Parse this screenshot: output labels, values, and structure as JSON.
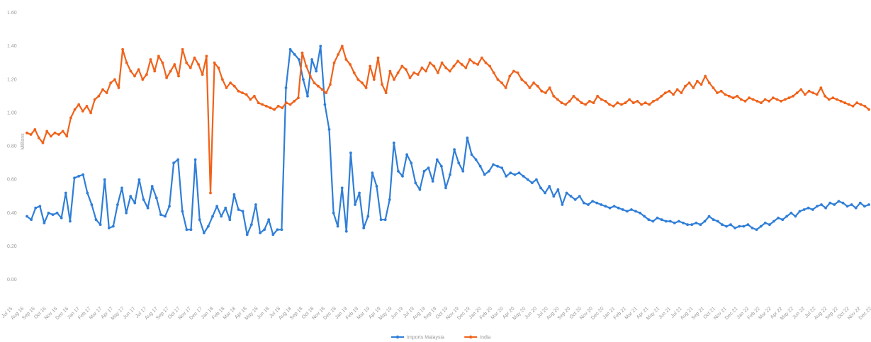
{
  "chart_data": {
    "type": "line",
    "title": "",
    "xlabel": "",
    "ylabel": "Millions",
    "legend_position": "bottom",
    "grid": false,
    "x_tick_labels": [
      "Jul 15",
      "Aug 16",
      "Sep 16",
      "Oct 16",
      "Nov 16",
      "Dec 16",
      "Jan 17",
      "Feb 17",
      "Mar 17",
      "Apr 17",
      "May 17",
      "Jun 17",
      "Jul 17",
      "Aug 17",
      "Sep 17",
      "Oct 17",
      "Nov 17",
      "Dec 17",
      "Jan 18",
      "Feb 18",
      "Mar 18",
      "Apr 18",
      "May 18",
      "Jun 18",
      "Jul 18",
      "Aug 18",
      "Sep 18",
      "Oct 18",
      "Nov 18",
      "Dec 18",
      "Jan 19",
      "Feb 19",
      "Mar 19",
      "Apr 19",
      "May 19",
      "Jun 19",
      "Jul 19",
      "Aug 19",
      "Sep 19",
      "Oct 19",
      "Nov 19",
      "Dec 19",
      "Jan 20",
      "Feb 20",
      "Mar 20",
      "Apr 20",
      "May 20",
      "Jun 20",
      "Jul 20",
      "Aug 20",
      "Sep 20",
      "Oct 20",
      "Nov 20",
      "Dec 20",
      "Jan 21",
      "Feb 21",
      "Mar 21",
      "Apr 21",
      "May 21",
      "Jun 21",
      "Jul 21",
      "Aug 21",
      "Sep 21",
      "Oct 21",
      "Nov 21",
      "Dec 21",
      "Jan 22",
      "Feb 22",
      "Mar 22",
      "Apr 22",
      "May 22",
      "Jun 22",
      "Jul 22",
      "Aug 22",
      "Sep 22",
      "Oct 22",
      "Nov 22",
      "Dec 22"
    ],
    "series": [
      {
        "name": "Imports Malaysia",
        "color": "#2f7ed8",
        "values": [
          0.38,
          0.36,
          0.43,
          0.44,
          0.34,
          0.4,
          0.39,
          0.4,
          0.37,
          0.52,
          0.35,
          0.61,
          0.62,
          0.63,
          0.52,
          0.45,
          0.36,
          0.33,
          0.6,
          0.31,
          0.32,
          0.45,
          0.55,
          0.4,
          0.5,
          0.46,
          0.6,
          0.48,
          0.43,
          0.56,
          0.49,
          0.39,
          0.38,
          0.44,
          0.7,
          0.72,
          0.41,
          0.3,
          0.3,
          0.72,
          0.36,
          0.28,
          0.32,
          0.38,
          0.44,
          0.38,
          0.43,
          0.36,
          0.51,
          0.42,
          0.41,
          0.27,
          0.33,
          0.45,
          0.28,
          0.3,
          0.36,
          0.27,
          0.3,
          0.3,
          1.15,
          1.38,
          1.35,
          1.32,
          1.2,
          1.1,
          1.32,
          1.25,
          1.4,
          1.05,
          0.9,
          0.4,
          0.32,
          0.55,
          0.29,
          0.76,
          0.45,
          0.52,
          0.31,
          0.38,
          0.64,
          0.56,
          0.36,
          0.36,
          0.48,
          0.82,
          0.65,
          0.62,
          0.75,
          0.7,
          0.58,
          0.54,
          0.65,
          0.67,
          0.59,
          0.72,
          0.68,
          0.55,
          0.63,
          0.78,
          0.7,
          0.65,
          0.85,
          0.75,
          0.72,
          0.68,
          0.63,
          0.65,
          0.69,
          0.68,
          0.67,
          0.62,
          0.64,
          0.63,
          0.64,
          0.62,
          0.6,
          0.58,
          0.6,
          0.55,
          0.52,
          0.56,
          0.5,
          0.54,
          0.45,
          0.52,
          0.5,
          0.48,
          0.5,
          0.46,
          0.45,
          0.47,
          0.46,
          0.45,
          0.44,
          0.43,
          0.44,
          0.43,
          0.42,
          0.41,
          0.42,
          0.41,
          0.4,
          0.38,
          0.36,
          0.35,
          0.37,
          0.36,
          0.35,
          0.35,
          0.34,
          0.35,
          0.34,
          0.33,
          0.33,
          0.34,
          0.33,
          0.35,
          0.38,
          0.36,
          0.35,
          0.33,
          0.32,
          0.33,
          0.31,
          0.32,
          0.32,
          0.33,
          0.31,
          0.3,
          0.32,
          0.34,
          0.33,
          0.35,
          0.37,
          0.36,
          0.38,
          0.4,
          0.38,
          0.41,
          0.42,
          0.43,
          0.42,
          0.44,
          0.45,
          0.43,
          0.46,
          0.45,
          0.47,
          0.46,
          0.44,
          0.45,
          0.43,
          0.46,
          0.44,
          0.45
        ],
        "note_values": "Approximate values read from the plot, left to right"
      },
      {
        "name": "India",
        "color": "#f0621a",
        "values": [
          0.88,
          0.87,
          0.9,
          0.85,
          0.82,
          0.89,
          0.86,
          0.88,
          0.87,
          0.89,
          0.86,
          0.97,
          1.02,
          1.05,
          1.01,
          1.04,
          1.0,
          1.08,
          1.1,
          1.14,
          1.12,
          1.18,
          1.2,
          1.15,
          1.38,
          1.3,
          1.25,
          1.22,
          1.26,
          1.2,
          1.23,
          1.32,
          1.25,
          1.34,
          1.3,
          1.21,
          1.25,
          1.29,
          1.22,
          1.38,
          1.3,
          1.27,
          1.33,
          1.29,
          1.23,
          1.34,
          0.52,
          1.3,
          1.27,
          1.2,
          1.15,
          1.18,
          1.16,
          1.13,
          1.12,
          1.11,
          1.08,
          1.1,
          1.06,
          1.05,
          1.04,
          1.03,
          1.02,
          1.04,
          1.03,
          1.06,
          1.05,
          1.07,
          1.09,
          1.36,
          1.28,
          1.22,
          1.18,
          1.16,
          1.14,
          1.12,
          1.17,
          1.3,
          1.35,
          1.4,
          1.32,
          1.29,
          1.24,
          1.2,
          1.18,
          1.15,
          1.28,
          1.2,
          1.33,
          1.17,
          1.12,
          1.25,
          1.2,
          1.24,
          1.28,
          1.26,
          1.21,
          1.24,
          1.23,
          1.27,
          1.25,
          1.3,
          1.28,
          1.24,
          1.3,
          1.27,
          1.25,
          1.28,
          1.31,
          1.29,
          1.27,
          1.32,
          1.3,
          1.29,
          1.33,
          1.3,
          1.28,
          1.24,
          1.2,
          1.18,
          1.15,
          1.22,
          1.25,
          1.24,
          1.2,
          1.18,
          1.15,
          1.18,
          1.16,
          1.13,
          1.12,
          1.15,
          1.1,
          1.08,
          1.06,
          1.05,
          1.07,
          1.1,
          1.08,
          1.06,
          1.05,
          1.07,
          1.06,
          1.1,
          1.08,
          1.07,
          1.05,
          1.04,
          1.06,
          1.05,
          1.06,
          1.08,
          1.06,
          1.07,
          1.05,
          1.06,
          1.05,
          1.07,
          1.08,
          1.1,
          1.12,
          1.13,
          1.11,
          1.14,
          1.12,
          1.16,
          1.18,
          1.15,
          1.19,
          1.17,
          1.22,
          1.18,
          1.15,
          1.12,
          1.13,
          1.11,
          1.1,
          1.09,
          1.1,
          1.08,
          1.07,
          1.09,
          1.08,
          1.07,
          1.06,
          1.08,
          1.07,
          1.09,
          1.08,
          1.07,
          1.08,
          1.09,
          1.1,
          1.12,
          1.14,
          1.11,
          1.13,
          1.12,
          1.11,
          1.15,
          1.1,
          1.08,
          1.09,
          1.08,
          1.07,
          1.06,
          1.05,
          1.04,
          1.06,
          1.05,
          1.04,
          1.02
        ]
      }
    ],
    "ylim": [
      0,
      1.6
    ]
  },
  "legend": {
    "items": [
      {
        "label": "Imports Malaysia",
        "color": "#2f7ed8"
      },
      {
        "label": "India",
        "color": "#f0621a"
      }
    ]
  },
  "y_axis": {
    "ticks": [
      "0.00",
      "0.20",
      "0.40",
      "0.60",
      "0.80",
      "1.00",
      "1.20",
      "1.40",
      "1.60"
    ]
  }
}
